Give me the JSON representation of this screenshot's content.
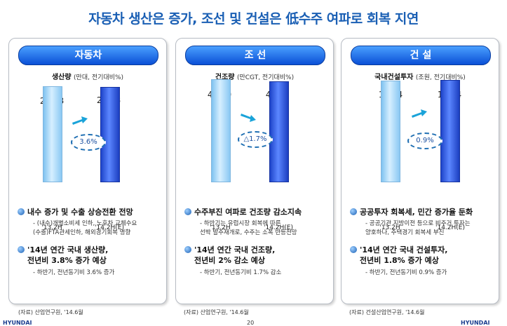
{
  "title": "자동차 생산은 증가, 조선 및 건설은 低수주 여파로 회복 지연",
  "panels": [
    {
      "header": "자동차",
      "metric": "생산량",
      "unit": "(만대, 전기대비%)",
      "bars": [
        {
          "label": "'13.2H",
          "value": "223.8"
        },
        {
          "label": "'14.2H(E)",
          "value": "231.8"
        }
      ],
      "growth": "3.6%",
      "bullet1": "내수 증가 및 수출 상승전환 전망",
      "bullet1_sub": [
        "- (내수)개별소비세 인하, 노후차 교체수요",
        "(수출)FTA관세인하, 해외경기회복 영향"
      ],
      "bullet2": [
        "'14년 연간 국내 생산량,",
        "전년비 3.8% 증가 예상"
      ],
      "bullet2_sub": "- 하반기, 전년동기비 3.6% 증가",
      "source": "(자료) 산업연구원, '14.6월"
    },
    {
      "header": "조 선",
      "metric": "건조량",
      "unit": "(만CGT, 전기대비%)",
      "bars": [
        {
          "label": "'13.2H",
          "value": "450.0"
        },
        {
          "label": "'14.2H(E)",
          "value": "442.2"
        }
      ],
      "growth": "△1.7%",
      "bullet1": "수주부진 여파로 건조량 감소지속",
      "bullet1_sub": [
        "- 하반기는 유럽시장 회복에 따른",
        "선박 발주재개로, 수주는 소폭 반등전망"
      ],
      "bullet2": [
        "'14년 연간 국내 건조량,",
        "전년비 2% 감소 예상"
      ],
      "bullet2_sub": "- 하반기, 전년동기비 1.7% 감소",
      "source": "(자료) 산업연구원, '14.6월"
    },
    {
      "header": "건 설",
      "metric": "국내건설투자",
      "unit": "(조원, 전기대비%)",
      "bars": [
        {
          "label": "'13.2H",
          "value": "106.4"
        },
        {
          "label": "'14.2H(E)",
          "value": "107.4"
        }
      ],
      "growth": "0.9%",
      "bullet1": "공공투자 회복세, 민간 증가율 둔화",
      "bullet1_sub": [
        "- 공공기관 지방이전 등으로 비주거 투자는",
        "양호하나, 주택경기 회복세 부진"
      ],
      "bullet2": [
        "'14년 연간 국내 건설투자,",
        "전년비 1.8% 증가 예상"
      ],
      "bullet2_sub": "- 하반기, 전년동기비 0.9% 증가",
      "source": "(자료) 건설산업연구원, '14.6월"
    }
  ],
  "footer": {
    "logo_left": "HYUNDAI",
    "page": "20",
    "logo_right": "HYUNDAI"
  }
}
